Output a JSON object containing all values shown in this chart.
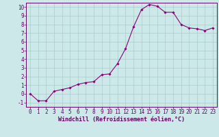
{
  "x": [
    0,
    1,
    2,
    3,
    4,
    5,
    6,
    7,
    8,
    9,
    10,
    11,
    12,
    13,
    14,
    15,
    16,
    17,
    18,
    19,
    20,
    21,
    22,
    23
  ],
  "y": [
    0.0,
    -0.8,
    -0.8,
    0.3,
    0.5,
    0.7,
    1.1,
    1.3,
    1.4,
    2.2,
    2.3,
    3.5,
    5.2,
    7.7,
    9.7,
    10.3,
    10.1,
    9.4,
    9.4,
    8.0,
    7.6,
    7.5,
    7.3,
    7.6
  ],
  "line_color": "#880077",
  "marker": "D",
  "marker_size": 1.8,
  "bg_color": "#cce8e8",
  "grid_color": "#aacccc",
  "axis_color": "#660066",
  "spine_color": "#660066",
  "xlabel": "Windchill (Refroidissement éolien,°C)",
  "xlim": [
    -0.5,
    23.5
  ],
  "ylim": [
    -1.5,
    10.5
  ],
  "yticks": [
    -1,
    0,
    1,
    2,
    3,
    4,
    5,
    6,
    7,
    8,
    9,
    10
  ],
  "xticks": [
    0,
    1,
    2,
    3,
    4,
    5,
    6,
    7,
    8,
    9,
    10,
    11,
    12,
    13,
    14,
    15,
    16,
    17,
    18,
    19,
    20,
    21,
    22,
    23
  ],
  "tick_fontsize": 5.5,
  "xlabel_fontsize": 6.0
}
